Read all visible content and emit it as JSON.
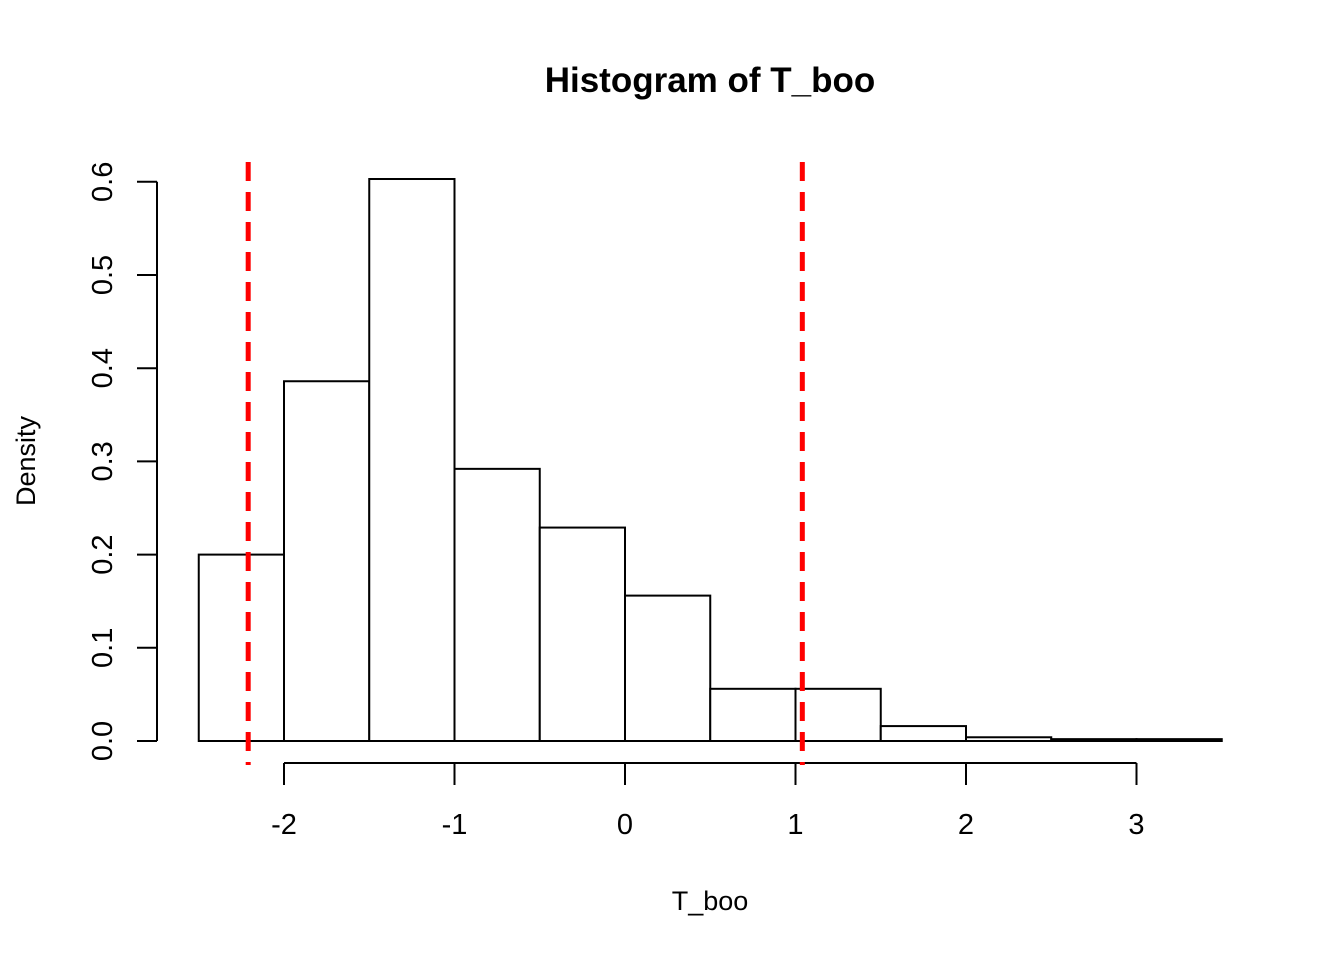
{
  "chart_data": {
    "type": "bar",
    "title": "Histogram of T_boo",
    "xlabel": "T_boo",
    "ylabel": "Density",
    "bins": [
      {
        "x0": -2.5,
        "x1": -2.0,
        "density": 0.2
      },
      {
        "x0": -2.0,
        "x1": -1.5,
        "density": 0.386
      },
      {
        "x0": -1.5,
        "x1": -1.0,
        "density": 0.603
      },
      {
        "x0": -1.0,
        "x1": -0.5,
        "density": 0.292
      },
      {
        "x0": -0.5,
        "x1": 0.0,
        "density": 0.229
      },
      {
        "x0": 0.0,
        "x1": 0.5,
        "density": 0.156
      },
      {
        "x0": 0.5,
        "x1": 1.0,
        "density": 0.056
      },
      {
        "x0": 1.0,
        "x1": 1.5,
        "density": 0.056
      },
      {
        "x0": 1.5,
        "x1": 2.0,
        "density": 0.016
      },
      {
        "x0": 2.0,
        "x1": 2.5,
        "density": 0.004
      },
      {
        "x0": 2.5,
        "x1": 3.0,
        "density": 0.002
      },
      {
        "x0": 3.0,
        "x1": 3.5,
        "density": 0.002
      }
    ],
    "xticks": [
      -2,
      -1,
      0,
      1,
      2,
      3
    ],
    "yticks": [
      0.0,
      0.1,
      0.2,
      0.3,
      0.4,
      0.5,
      0.6
    ],
    "ytick_labels": [
      "0.0",
      "0.1",
      "0.2",
      "0.3",
      "0.4",
      "0.5",
      "0.6"
    ],
    "xlim": [
      -2.5,
      3.5
    ],
    "ylim": [
      0,
      0.6
    ],
    "vlines": [
      {
        "x": -2.21,
        "color": "#ff0000",
        "style": "dashed"
      },
      {
        "x": 1.04,
        "color": "#ff0000",
        "style": "dashed"
      }
    ],
    "grid": false,
    "bar_fill": "#ffffff",
    "bar_stroke": "#000000"
  }
}
